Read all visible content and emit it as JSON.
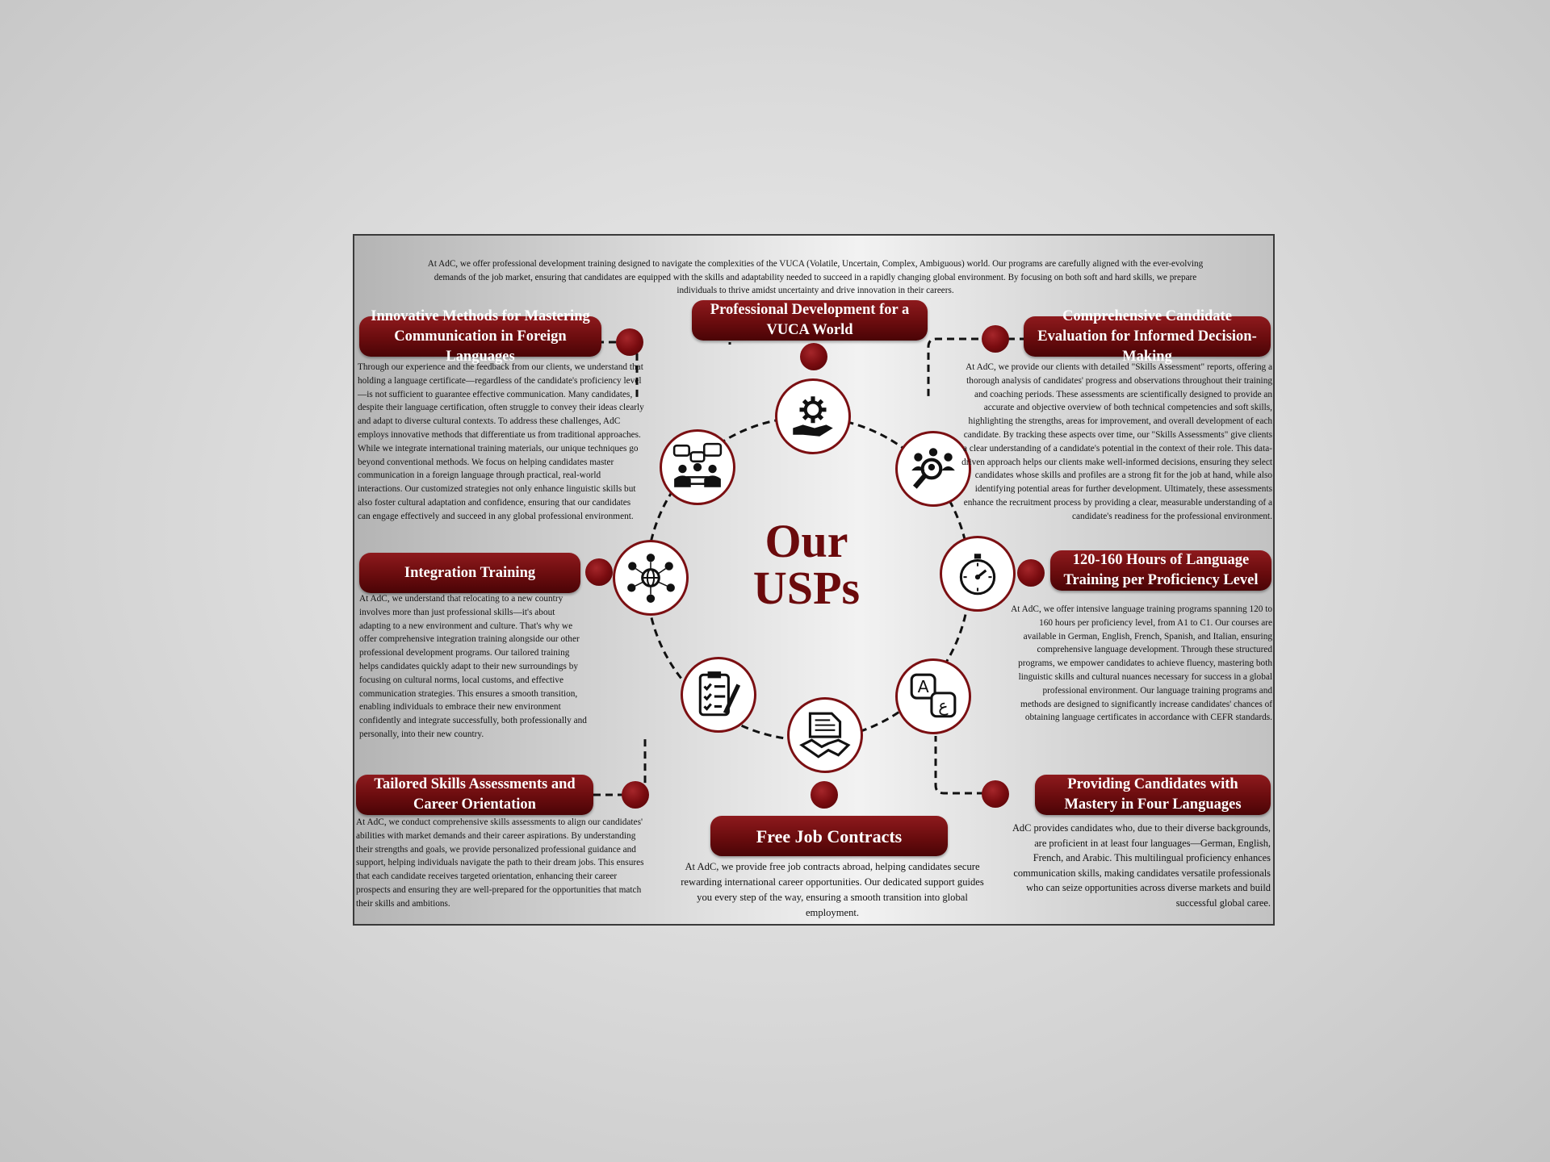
{
  "intro": "At AdC, we offer professional development training designed to navigate the complexities of the VUCA (Volatile, Uncertain, Complex, Ambiguous) world. Our programs are carefully aligned with the ever-evolving demands of the job market, ensuring that candidates are equipped with the skills and adaptability needed to succeed in a rapidly changing global environment. By focusing on both soft and hard skills, we prepare individuals to thrive amidst uncertainty and drive innovation in their careers.",
  "center": {
    "line1": "Our",
    "line2": "USPs"
  },
  "sections": {
    "vuca": {
      "title": "Professional Development for a VUCA World"
    },
    "languages": {
      "title": "Innovative Methods for Mastering Communication in Foreign Languages",
      "body": "Through our experience and the feedback from our clients, we understand that holding a language certificate—regardless of the candidate's proficiency level—is not sufficient to guarantee effective communication. Many candidates, despite their language certification, often struggle to convey their ideas clearly and adapt to diverse cultural contexts. To address these challenges, AdC employs innovative methods that differentiate us from traditional approaches. While we integrate international training materials, our unique techniques go beyond conventional methods. We focus on helping candidates master communication in a foreign language through practical, real-world interactions. Our customized strategies not only enhance linguistic skills but also foster cultural adaptation and confidence, ensuring that our candidates can engage effectively and succeed in any global professional environment."
    },
    "evaluation": {
      "title": "Comprehensive Candidate Evaluation for Informed Decision-Making",
      "body": "At AdC, we provide our clients with detailed \"Skills Assessment\" reports, offering a thorough analysis of candidates' progress and observations throughout their training and coaching periods. These assessments are scientifically designed to provide an accurate and objective overview of both technical competencies and soft skills, highlighting the strengths, areas for improvement, and overall development of each candidate. By tracking these aspects over time, our \"Skills Assessments\" give clients a clear understanding of a candidate's potential in the context of their role. This data-driven approach helps our clients make well-informed decisions, ensuring they select candidates whose skills and profiles are a strong fit for the job at hand, while also identifying potential areas for further development. Ultimately, these assessments enhance the recruitment process by providing a clear, measurable understanding of a candidate's readiness for the professional environment."
    },
    "integration": {
      "title": "Integration Training",
      "body": "At AdC, we understand that relocating to a new country involves more than just professional skills—it's about adapting to a new environment and culture. That's why we offer comprehensive integration training alongside our other professional development programs. Our tailored training helps candidates quickly adapt to their new surroundings by focusing on cultural norms, local customs, and effective communication strategies. This ensures a smooth transition, enabling individuals to embrace their new environment confidently and integrate successfully, both professionally and personally, into their new country."
    },
    "hours": {
      "title": "120-160 Hours of Language Training per Proficiency Level",
      "body": "At AdC, we offer intensive language training programs spanning 120 to 160 hours per proficiency level, from A1 to C1. Our courses are available in German, English, French, Spanish, and Italian, ensuring comprehensive language development. Through these structured programs, we empower candidates to achieve fluency, mastering both linguistic skills and cultural nuances necessary for success in a global professional environment. Our language training programs and methods are designed to significantly increase candidates' chances of obtaining language certificates in accordance with CEFR standards."
    },
    "assessments": {
      "title": "Tailored Skills Assessments and Career Orientation",
      "body": "At AdC, we conduct comprehensive skills assessments to align our candidates' abilities with market demands and their career aspirations. By understanding their strengths and goals, we provide personalized professional guidance and support, helping individuals navigate the path to their dream jobs. This ensures that each candidate receives targeted orientation, enhancing their career prospects and ensuring they are well-prepared for the opportunities that match their skills and ambitions."
    },
    "contracts": {
      "title": "Free Job Contracts",
      "body": "At AdC, we provide free job contracts abroad, helping candidates secure rewarding international career opportunities. Our dedicated support guides you every step of the way, ensuring a smooth transition into global employment."
    },
    "mastery": {
      "title": "Providing Candidates with Mastery in Four Languages",
      "body": "AdC provides candidates who, due to their diverse backgrounds, are proficient in at least four languages—German, English, French, and Arabic. This multilingual proficiency enhances communication skills, making candidates versatile professionals who can seize opportunities across diverse markets and build successful global caree."
    }
  },
  "colors": {
    "accent": "#7b0f12",
    "badge_dark": "#4a0406",
    "text": "#111111"
  }
}
